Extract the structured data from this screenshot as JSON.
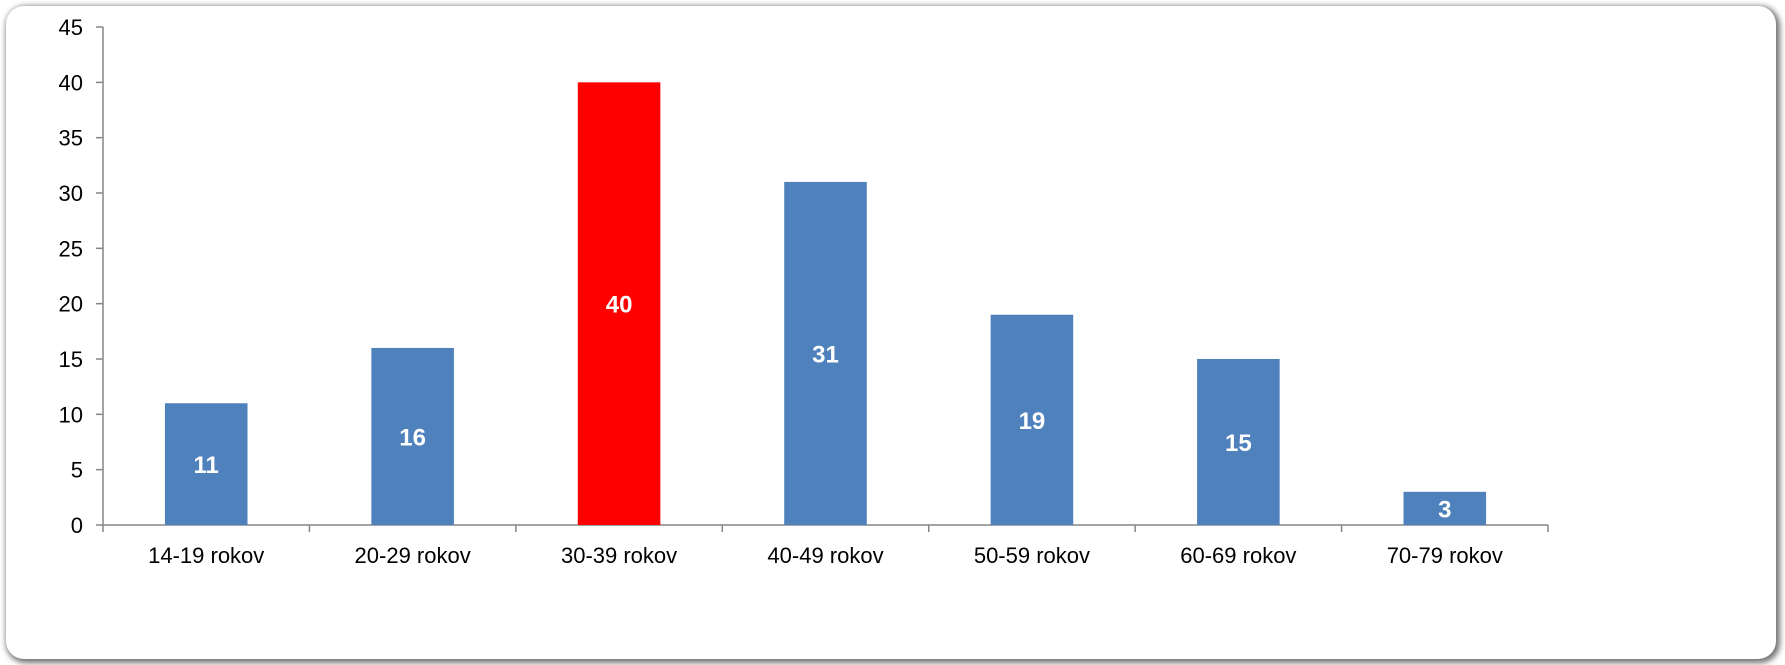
{
  "chart_data": {
    "type": "bar",
    "categories": [
      "14-19 rokov",
      "20-29 rokov",
      "30-39 rokov",
      "40-49 rokov",
      "50-59 rokov",
      "60-69 rokov",
      "70-79 rokov"
    ],
    "values": [
      11,
      16,
      40,
      31,
      19,
      15,
      3
    ],
    "ylim": [
      0,
      45
    ],
    "yticks": [
      0,
      5,
      10,
      15,
      20,
      25,
      30,
      35,
      40,
      45
    ],
    "grid": false,
    "legend": "none",
    "colors": {
      "default_bar": "#4F81BD",
      "highlight_bar": "#FF0000",
      "highlight_index": 2,
      "data_label": "#FFFFFF",
      "axis": "#868686"
    }
  }
}
